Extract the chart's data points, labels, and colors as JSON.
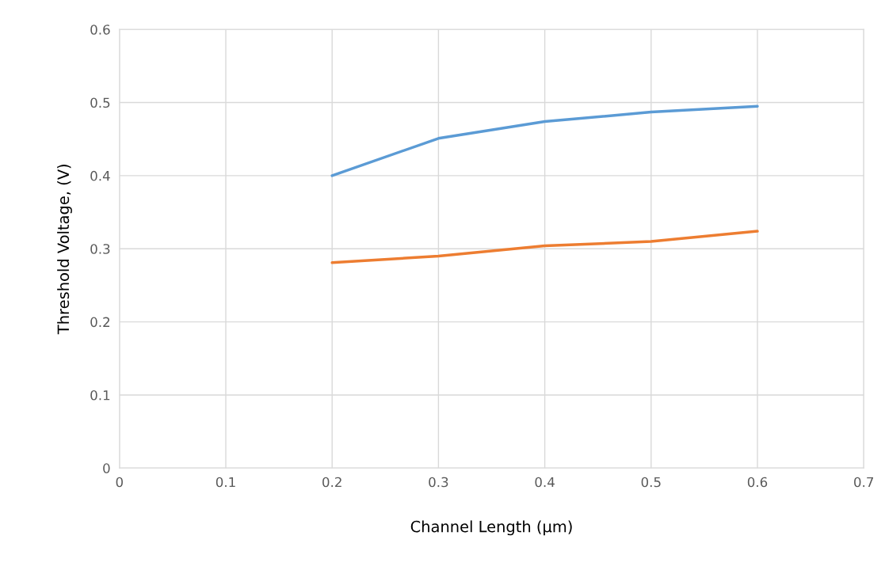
{
  "chart_data": {
    "type": "line",
    "xlabel": "Channel Length (µm)",
    "ylabel": "Threshold Voltage, (V)",
    "x": [
      0.2,
      0.3,
      0.4,
      0.5,
      0.6
    ],
    "series": [
      {
        "color": "#5b9bd5",
        "values": [
          0.4,
          0.451,
          0.474,
          0.487,
          0.495
        ]
      },
      {
        "color": "#ed7d31",
        "values": [
          0.281,
          0.29,
          0.304,
          0.31,
          0.324
        ]
      }
    ],
    "xlim": [
      0,
      0.7
    ],
    "xticks": [
      0,
      0.1,
      0.2,
      0.3,
      0.4,
      0.5,
      0.6,
      0.7
    ],
    "ylim": [
      0,
      0.6
    ],
    "yticks": [
      0,
      0.1,
      0.2,
      0.3,
      0.4,
      0.5,
      0.6
    ],
    "grid": true,
    "marker": "none",
    "line_style": "solid"
  }
}
